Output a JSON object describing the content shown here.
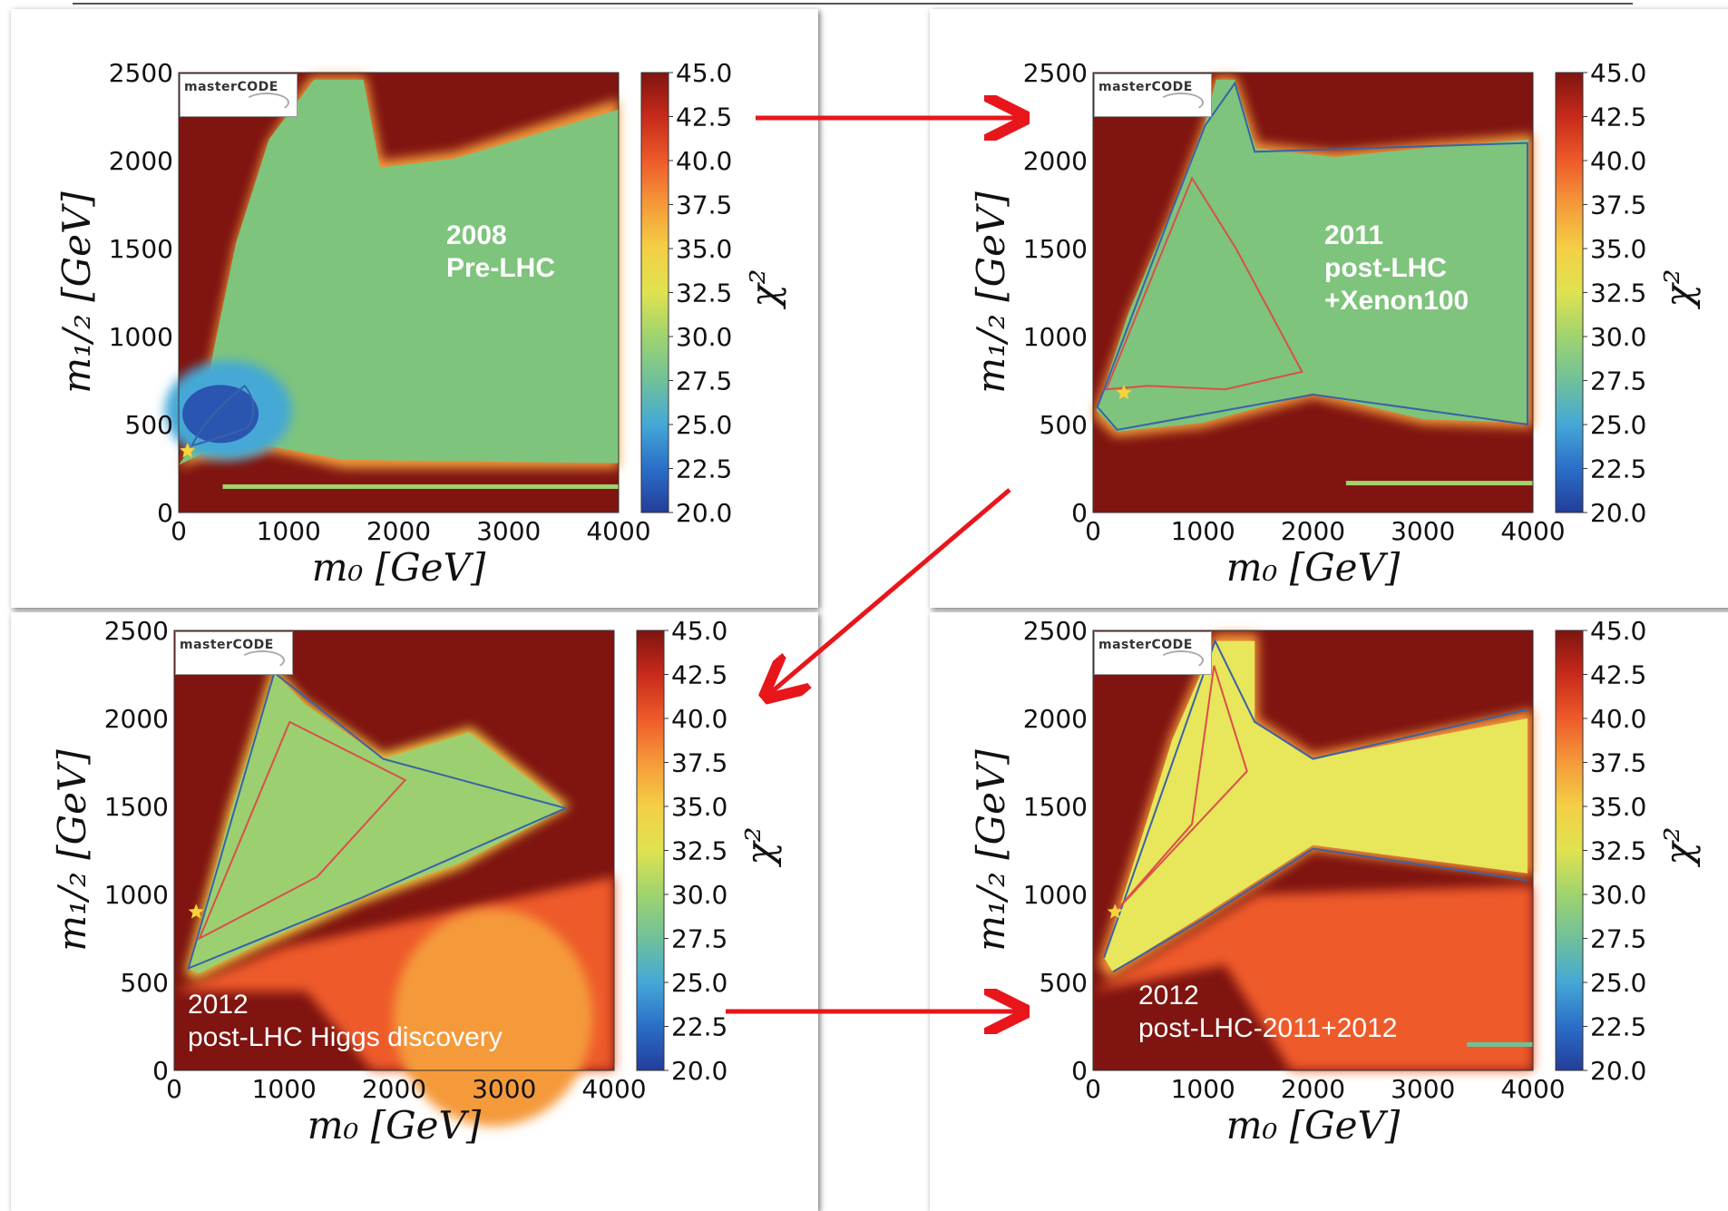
{
  "chart_data": [
    {
      "type": "heatmap",
      "id": "pre-lhc-2008",
      "annotation": [
        "2008",
        "Pre-LHC"
      ],
      "annotation_bold": true,
      "annotation_color": "#ffffff",
      "logo": "masterCODE",
      "xlabel": "m₀ [GeV]",
      "ylabel": "m₁/₂ [GeV]",
      "xlim": [
        0,
        4000
      ],
      "ylim": [
        0,
        2500
      ],
      "xticks": [
        "0",
        "1000",
        "2000",
        "3000",
        "4000"
      ],
      "yticks": [
        "0",
        "500",
        "1000",
        "1500",
        "2000",
        "2500"
      ],
      "colorbar": {
        "label": "χ²",
        "range": [
          20.0,
          45.0
        ],
        "ticks": [
          "45.0",
          "42.5",
          "40.0",
          "37.5",
          "35.0",
          "32.5",
          "30.0",
          "27.5",
          "25.0",
          "22.5",
          "20.0"
        ]
      },
      "background_color": "#7f1410",
      "fill_color": "#7ec47c",
      "best_fit": {
        "x": 80,
        "y": 350
      }
    },
    {
      "type": "heatmap",
      "id": "post-lhc-2011",
      "annotation": [
        "2011",
        "post-LHC",
        "+Xenon100"
      ],
      "annotation_bold": true,
      "annotation_color": "#ffffff",
      "logo": "masterCODE",
      "xlabel": "m₀ [GeV]",
      "ylabel": "m₁/₂ [GeV]",
      "xlim": [
        0,
        4000
      ],
      "ylim": [
        0,
        2500
      ],
      "xticks": [
        "0",
        "1000",
        "2000",
        "3000",
        "4000"
      ],
      "yticks": [
        "0",
        "500",
        "1000",
        "1500",
        "2000",
        "2500"
      ],
      "colorbar": {
        "label": "χ²",
        "range": [
          20.0,
          45.0
        ],
        "ticks": [
          "45.0",
          "42.5",
          "40.0",
          "37.5",
          "35.0",
          "32.5",
          "30.0",
          "27.5",
          "25.0",
          "22.5",
          "20.0"
        ]
      },
      "background_color": "#7f1410",
      "fill_color": "#7ec47c",
      "best_fit": {
        "x": 280,
        "y": 680
      }
    },
    {
      "type": "heatmap",
      "id": "post-lhc-higgs-2012",
      "annotation": [
        "2012",
        "post-LHC Higgs discovery"
      ],
      "annotation_bold": false,
      "annotation_color": "#ffffff",
      "logo": "masterCODE",
      "xlabel": "m₀ [GeV]",
      "ylabel": "m₁/₂ [GeV]",
      "xlim": [
        0,
        4000
      ],
      "ylim": [
        0,
        2500
      ],
      "xticks": [
        "0",
        "1000",
        "2000",
        "3000",
        "4000"
      ],
      "yticks": [
        "0",
        "500",
        "1000",
        "1500",
        "2000",
        "2500"
      ],
      "colorbar": {
        "label": "χ²",
        "range": [
          20.0,
          45.0
        ],
        "ticks": [
          "45.0",
          "42.5",
          "40.0",
          "37.5",
          "35.0",
          "32.5",
          "30.0",
          "27.5",
          "25.0",
          "22.5",
          "20.0"
        ]
      },
      "background_color": "#7f1410",
      "fill_color": "#9ccf70",
      "best_fit": {
        "x": 200,
        "y": 900
      }
    },
    {
      "type": "heatmap",
      "id": "post-lhc-2011-2012",
      "annotation": [
        "2012",
        "post-LHC-2011+2012"
      ],
      "annotation_bold": false,
      "annotation_color": "#ffffff",
      "logo": "masterCODE",
      "xlabel": "m₀ [GeV]",
      "ylabel": "m₁/₂ [GeV]",
      "xlim": [
        0,
        4000
      ],
      "ylim": [
        0,
        2500
      ],
      "xticks": [
        "0",
        "1000",
        "2000",
        "3000",
        "4000"
      ],
      "yticks": [
        "0",
        "500",
        "1000",
        "1500",
        "2000",
        "2500"
      ],
      "colorbar": {
        "label": "χ²",
        "range": [
          20.0,
          45.0
        ],
        "ticks": [
          "45.0",
          "42.5",
          "40.0",
          "37.5",
          "35.0",
          "32.5",
          "30.0",
          "27.5",
          "25.0",
          "22.5",
          "20.0"
        ]
      },
      "background_color": "#7f1410",
      "fill_color": "#e8e65a",
      "best_fit": {
        "x": 200,
        "y": 900
      }
    }
  ],
  "arrows": [
    {
      "from": "pre-lhc-2008",
      "to": "post-lhc-2011"
    },
    {
      "from": "post-lhc-2011",
      "to": "post-lhc-higgs-2012"
    },
    {
      "from": "post-lhc-higgs-2012",
      "to": "post-lhc-2011-2012"
    }
  ],
  "colors": {
    "arrow": "#e8161b",
    "contour_blue": "#3a62a8",
    "contour_red": "#d9504a"
  }
}
